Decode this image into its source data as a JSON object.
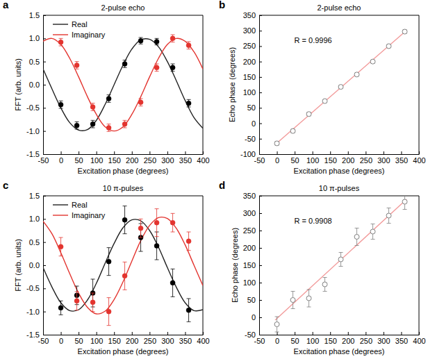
{
  "chart_data": [
    {
      "type": "scatter",
      "panel_label": "a",
      "title": "2-pulse echo",
      "x_label": "Excitation phase (degrees)",
      "y_label": "FFT (arb. units)",
      "xlim": [
        -50,
        400
      ],
      "xticks": [
        -50,
        0,
        50,
        100,
        150,
        200,
        250,
        300,
        350,
        400
      ],
      "ylim": [
        -1.5,
        1.5
      ],
      "yticks": [
        -1.5,
        {
          "value": -1,
          "label": "-1.0"
        },
        -0.5,
        {
          "value": 0,
          "label": "0.0"
        },
        0.5,
        {
          "value": 1,
          "label": "1.0"
        },
        1.5
      ],
      "legend": "upper left",
      "series": [
        {
          "name": "Real",
          "type": "line",
          "color": "#222222",
          "line_style": "solid",
          "x": [
            -50,
            -25,
            0,
            25,
            50,
            75,
            100,
            125,
            150,
            175,
            200,
            225,
            250,
            275,
            300,
            325,
            350,
            375,
            400
          ],
          "values": [
            0.34,
            -0.09,
            -0.5,
            -0.82,
            -0.98,
            -0.97,
            -0.77,
            -0.42,
            0,
            0.42,
            0.77,
            0.97,
            0.98,
            0.82,
            0.5,
            0.09,
            -0.34,
            -0.71,
            -0.94
          ]
        },
        {
          "name": "Imaginary",
          "type": "line",
          "color": "#e3342f",
          "line_style": "solid",
          "x": [
            -50,
            -25,
            0,
            25,
            50,
            75,
            100,
            125,
            150,
            175,
            200,
            225,
            250,
            275,
            300,
            325,
            350,
            375,
            400
          ],
          "values": [
            0.94,
            1.0,
            0.87,
            0.57,
            0.17,
            -0.26,
            -0.64,
            -0.91,
            -1.0,
            -0.91,
            -0.64,
            -0.26,
            0.17,
            0.57,
            0.87,
            1.0,
            0.94,
            0.71,
            0.34
          ]
        },
        {
          "type": "scatter",
          "color": "#000000",
          "marker": "circle",
          "x": [
            0,
            45,
            90,
            135,
            180,
            225,
            270,
            315,
            360
          ],
          "values": [
            -0.43,
            -0.88,
            -0.85,
            -0.3,
            0.45,
            0.95,
            0.93,
            0.37,
            -0.4
          ],
          "errors": [
            0.08,
            0.08,
            0.08,
            0.08,
            0.08,
            0.07,
            0.07,
            0.08,
            0.08
          ]
        },
        {
          "type": "scatter",
          "color": "#e3342f",
          "marker": "circle",
          "x": [
            0,
            45,
            90,
            135,
            180,
            225,
            270,
            315,
            360
          ],
          "values": [
            0.92,
            0.42,
            -0.48,
            -0.93,
            -0.85,
            -0.38,
            0.37,
            1.0,
            0.85
          ],
          "errors": [
            0.08,
            0.08,
            0.08,
            0.08,
            0.08,
            0.08,
            0.08,
            0.08,
            0.08
          ]
        }
      ]
    },
    {
      "type": "scatter",
      "panel_label": "b",
      "title": "2-pulse echo",
      "x_label": "Excitation phase (degrees)",
      "y_label": "Echo phase (degrees)",
      "xlim": [
        -50,
        400
      ],
      "xticks": [
        -50,
        0,
        50,
        100,
        150,
        200,
        250,
        300,
        350,
        400
      ],
      "ylim": [
        -100,
        350
      ],
      "yticks": [
        -100,
        -50,
        0,
        50,
        100,
        150,
        200,
        250,
        300,
        350
      ],
      "annotations": [
        "R = 0.9996"
      ],
      "series": [
        {
          "type": "line",
          "color": "#f29a9a",
          "line_style": "solid",
          "x": [
            -5,
            365
          ],
          "values": [
            -69,
            301
          ]
        },
        {
          "type": "scatter",
          "color": "#7f7f7f",
          "marker": "open-circle",
          "x": [
            0,
            45,
            90,
            135,
            180,
            225,
            270,
            315,
            360
          ],
          "values": [
            -65,
            -25,
            30,
            72,
            118,
            158,
            200,
            250,
            297
          ],
          "errors": [
            6,
            6,
            6,
            5,
            5,
            5,
            5,
            5,
            6
          ]
        }
      ]
    },
    {
      "type": "scatter",
      "panel_label": "c",
      "title": "10 π-pulses",
      "x_label": "Excitation phase (degrees)",
      "y_label": "FFT (arb. units)",
      "xlim": [
        -50,
        400
      ],
      "xticks": [
        -50,
        0,
        50,
        100,
        150,
        200,
        250,
        300,
        350,
        400
      ],
      "ylim": [
        -1.5,
        1.5
      ],
      "yticks": [
        -1.5,
        {
          "value": -1,
          "label": "-1.0"
        },
        -0.5,
        {
          "value": 0,
          "label": "0.0"
        },
        0.5,
        {
          "value": 1,
          "label": "1.0"
        },
        1.5
      ],
      "legend": "upper left",
      "series": [
        {
          "name": "Real",
          "type": "line",
          "color": "#222222",
          "line_style": "solid",
          "x": [
            -50,
            -25,
            0,
            25,
            50,
            75,
            100,
            125,
            150,
            175,
            200,
            225,
            250,
            275,
            300,
            325,
            350,
            375,
            400
          ],
          "values": [
            -0.05,
            -0.47,
            -0.81,
            -0.98,
            -0.96,
            -0.75,
            -0.39,
            0.05,
            0.47,
            0.81,
            0.98,
            0.96,
            0.75,
            0.39,
            -0.05,
            -0.47,
            -0.81,
            -0.98,
            -0.96
          ]
        },
        {
          "name": "Imaginary",
          "type": "line",
          "color": "#e3342f",
          "line_style": "solid",
          "x": [
            -50,
            -25,
            0,
            25,
            50,
            75,
            100,
            125,
            150,
            175,
            200,
            225,
            250,
            275,
            300,
            325,
            350,
            375,
            400
          ],
          "values": [
            0.95,
            0.68,
            0.27,
            -0.18,
            -0.6,
            -0.91,
            -1.05,
            -0.99,
            -0.74,
            -0.36,
            0.09,
            0.53,
            0.86,
            1.03,
            1.01,
            0.8,
            0.44,
            0,
            -0.44
          ]
        },
        {
          "type": "scatter",
          "color": "#000000",
          "marker": "circle",
          "x": [
            0,
            45,
            90,
            135,
            180,
            225,
            270,
            315,
            360
          ],
          "values": [
            -0.92,
            -0.65,
            -0.6,
            0.08,
            0.98,
            0.6,
            0.42,
            -0.38,
            -0.97
          ],
          "errors": [
            0.15,
            0.2,
            0.3,
            0.3,
            0.3,
            0.3,
            0.3,
            0.3,
            0.25
          ]
        },
        {
          "type": "scatter",
          "color": "#e3342f",
          "marker": "circle",
          "x": [
            0,
            45,
            90,
            135,
            180,
            225,
            270,
            315,
            360
          ],
          "values": [
            0.4,
            -0.77,
            -0.8,
            -1.0,
            -0.23,
            0.8,
            0.92,
            0.92,
            0.52
          ],
          "errors": [
            0.2,
            0.2,
            0.2,
            0.3,
            0.3,
            0.2,
            0.3,
            0.2,
            0.2
          ]
        }
      ]
    },
    {
      "type": "scatter",
      "panel_label": "d",
      "title": "10 π-pulses",
      "x_label": "Excitation phase (degrees)",
      "y_label": "Echo phase (degrees)",
      "xlim": [
        -50,
        400
      ],
      "xticks": [
        -50,
        0,
        50,
        100,
        150,
        200,
        250,
        300,
        350,
        400
      ],
      "ylim": [
        -50,
        350
      ],
      "yticks": [
        -50,
        0,
        50,
        100,
        150,
        200,
        250,
        300,
        350
      ],
      "annotations": [
        "R = 0.9908"
      ],
      "series": [
        {
          "type": "line",
          "color": "#f29a9a",
          "line_style": "solid",
          "x": [
            -5,
            365
          ],
          "values": [
            -8,
            340
          ]
        },
        {
          "type": "scatter",
          "color": "#7f7f7f",
          "marker": "open-circle",
          "x": [
            0,
            45,
            90,
            135,
            180,
            225,
            270,
            315,
            360
          ],
          "values": [
            -20,
            50,
            55,
            95,
            167,
            232,
            247,
            293,
            333
          ],
          "errors": [
            22,
            25,
            25,
            20,
            20,
            25,
            22,
            22,
            22
          ]
        }
      ]
    }
  ]
}
